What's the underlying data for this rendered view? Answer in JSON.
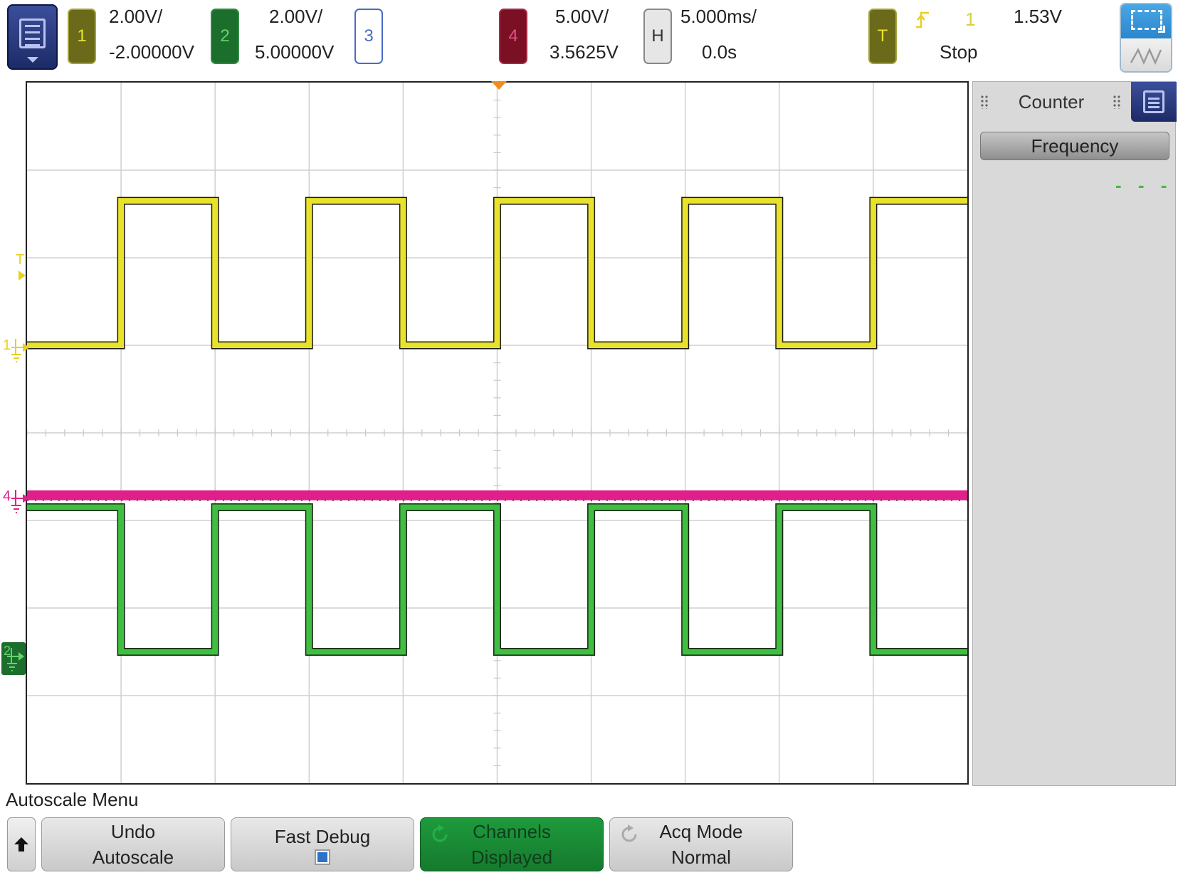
{
  "channels": {
    "ch1": {
      "number": "1",
      "scale": "2.00V/",
      "offset": "-2.00000V",
      "color": "#e8e32a"
    },
    "ch2": {
      "number": "2",
      "scale": "2.00V/",
      "offset": "5.00000V",
      "color": "#3fbf3f"
    },
    "ch3": {
      "number": "3"
    },
    "ch4": {
      "number": "4",
      "scale": "5.00V/",
      "offset": "3.5625V",
      "color": "#e0208a"
    }
  },
  "horizontal": {
    "label": "H",
    "scale": "5.000ms/",
    "delay": "0.0s"
  },
  "trigger": {
    "label": "T",
    "source": "1",
    "level": "1.53V",
    "state": "Stop"
  },
  "side_panel": {
    "title": "Counter",
    "button_label": "Frequency",
    "value": "- - -"
  },
  "markers": {
    "trigger_level": "T",
    "ch1": "1",
    "ch4": "4",
    "ch2": "2"
  },
  "menu": {
    "title": "Autoscale Menu",
    "softkeys": [
      {
        "line1": "Undo",
        "line2": "Autoscale"
      },
      {
        "line1": "Fast Debug",
        "checked": true
      },
      {
        "line1": "Channels",
        "line2": "Displayed",
        "active": true
      },
      {
        "line1": "Acq Mode",
        "line2": "Normal"
      }
    ]
  },
  "chart_data": {
    "type": "line",
    "x_unit": "ms",
    "xlim": [
      -25,
      25
    ],
    "series": [
      {
        "channel": "1",
        "type": "square",
        "low_v": 0,
        "high_v": 3.3,
        "edges_ms": [
          -20,
          -15,
          -10,
          -5,
          0,
          5,
          10,
          15,
          20
        ],
        "start_level": "low"
      },
      {
        "channel": "2",
        "type": "square",
        "low_v": 0,
        "high_v": 3.3,
        "edges_ms": [
          -20,
          -15,
          -10,
          -5,
          0,
          5,
          10,
          15,
          20
        ],
        "start_level": "high"
      },
      {
        "channel": "4",
        "type": "dc",
        "value_v": 0
      }
    ]
  },
  "colors": {
    "trigger_marker": "#f08c1e",
    "counter_value": "#3fbf3f"
  }
}
